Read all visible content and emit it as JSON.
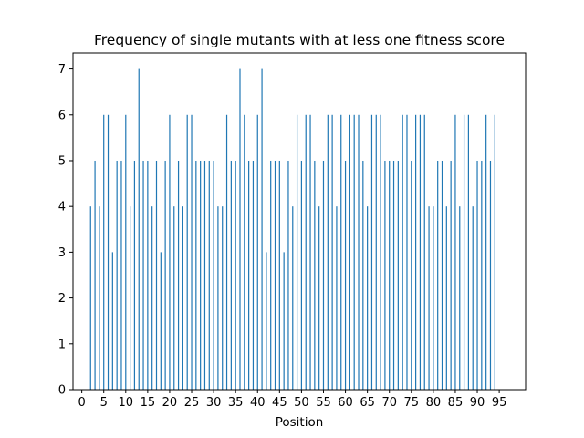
{
  "chart_data": {
    "type": "bar",
    "title": "Frequency of single mutants with at less one fitness score",
    "xlabel": "Position",
    "ylabel": "",
    "xlim": [
      -2,
      101
    ],
    "ylim": [
      0,
      7.35
    ],
    "xticks": [
      0,
      5,
      10,
      15,
      20,
      25,
      30,
      35,
      40,
      45,
      50,
      55,
      60,
      65,
      70,
      75,
      80,
      85,
      90,
      95
    ],
    "yticks": [
      0,
      1,
      2,
      3,
      4,
      5,
      6,
      7
    ],
    "grid": false,
    "bar_color": "#1f77b4",
    "x": [
      2,
      3,
      4,
      5,
      6,
      7,
      8,
      9,
      10,
      11,
      12,
      13,
      14,
      15,
      16,
      17,
      18,
      19,
      20,
      21,
      22,
      23,
      24,
      25,
      26,
      27,
      28,
      29,
      30,
      31,
      32,
      33,
      34,
      35,
      36,
      37,
      38,
      39,
      40,
      41,
      42,
      43,
      44,
      45,
      46,
      47,
      48,
      49,
      50,
      51,
      52,
      53,
      54,
      55,
      56,
      57,
      58,
      59,
      60,
      61,
      62,
      63,
      64,
      65,
      66,
      67,
      68,
      69,
      70,
      71,
      72,
      73,
      74,
      75,
      76,
      77,
      78,
      79,
      80,
      81,
      82,
      83,
      84,
      85,
      86,
      87,
      88,
      89,
      90,
      91,
      92,
      93,
      94,
      95,
      96,
      97
    ],
    "values": [
      4,
      5,
      4,
      6,
      6,
      3,
      5,
      5,
      6,
      4,
      5,
      7,
      5,
      5,
      4,
      5,
      3,
      5,
      6,
      4,
      5,
      4,
      6,
      6,
      5,
      5,
      5,
      5,
      5,
      4,
      4,
      6,
      5,
      5,
      7,
      6,
      5,
      5,
      6,
      7,
      3,
      5,
      5,
      5,
      3,
      5,
      4,
      6,
      5,
      6,
      6,
      5,
      4,
      5,
      6,
      6,
      4,
      6,
      5,
      6,
      6,
      6,
      5,
      4,
      6,
      6,
      6,
      5,
      5,
      5,
      5,
      6,
      6,
      5,
      6,
      6,
      6,
      4,
      4,
      5,
      5,
      4,
      5,
      6,
      4,
      6,
      6,
      4,
      5,
      5,
      6,
      5,
      6,
      0,
      0,
      0
    ]
  }
}
